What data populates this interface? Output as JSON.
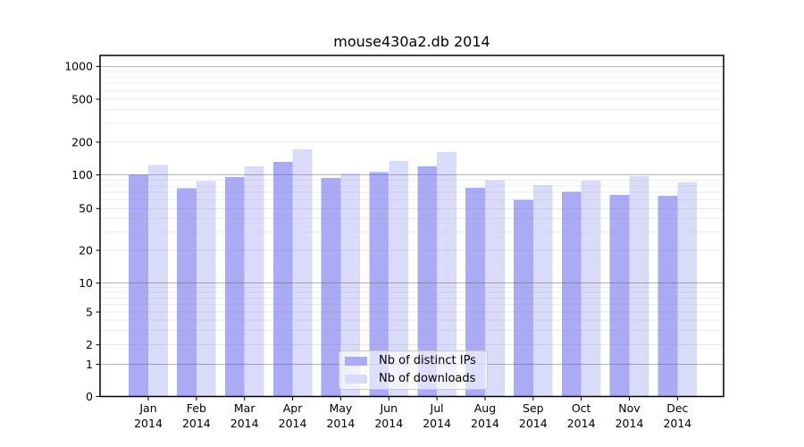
{
  "chart_data": {
    "type": "bar",
    "title": "mouse430a2.db 2014",
    "xlabel": "",
    "ylabel": "",
    "categories": [
      "Jan",
      "Feb",
      "Mar",
      "Apr",
      "May",
      "Jun",
      "Jul",
      "Aug",
      "Sep",
      "Oct",
      "Nov",
      "Dec"
    ],
    "x_year_label": "2014",
    "series": [
      {
        "name": "Nb of distinct IPs",
        "color": "#aaaaf5",
        "values": [
          100,
          76,
          96,
          132,
          94,
          106,
          120,
          77,
          60,
          71,
          66,
          65
        ]
      },
      {
        "name": "Nb of downloads",
        "color": "#dadaf9",
        "values": [
          124,
          88,
          120,
          172,
          103,
          135,
          162,
          90,
          81,
          89,
          98,
          86
        ]
      }
    ],
    "yticks": [
      0,
      1,
      2,
      5,
      10,
      20,
      50,
      100,
      200,
      500,
      1000
    ],
    "ylim": [
      0,
      1000
    ],
    "yscale": "log-like (symlog with 0 baseline)",
    "grid": true,
    "legend_position": "lower-center-inside"
  }
}
